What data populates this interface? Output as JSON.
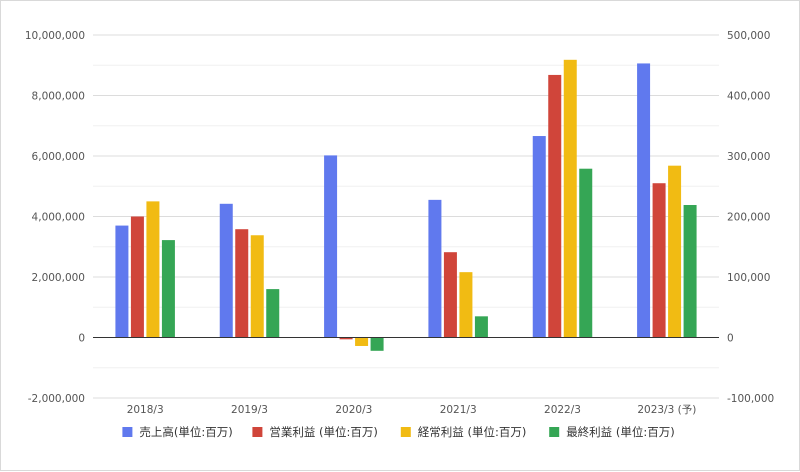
{
  "chart_data": {
    "type": "bar",
    "categories": [
      "2018/3",
      "2019/3",
      "2020/3",
      "2021/3",
      "2022/3",
      "2023/3 (予)"
    ],
    "series": [
      {
        "name": "売上高(単位:百万)",
        "axis": "left",
        "color": "#6079ee",
        "values": [
          3700000,
          4420000,
          6020000,
          4550000,
          6660000,
          9060000
        ]
      },
      {
        "name": "営業利益 (単位:百万)",
        "axis": "right",
        "color": "#d0453a",
        "values": [
          200000,
          179000,
          -3000,
          141000,
          434000,
          255000
        ]
      },
      {
        "name": "経常利益 (単位:百万)",
        "axis": "right",
        "color": "#f1bb13",
        "values": [
          225000,
          169000,
          -14000,
          108000,
          459000,
          284000
        ]
      },
      {
        "name": "最終利益 (単位:百万)",
        "axis": "right",
        "color": "#35a655",
        "values": [
          161000,
          80000,
          -22000,
          35000,
          279000,
          219000
        ]
      }
    ],
    "y_left": {
      "ylim": [
        -2000000,
        10000000
      ],
      "ticks": [
        "-2,000,000",
        "0",
        "2,000,000",
        "4,000,000",
        "6,000,000",
        "8,000,000",
        "10,000,000"
      ]
    },
    "y_right": {
      "ylim": [
        -100000,
        500000
      ],
      "ticks": [
        "-100,000",
        "0",
        "100,000",
        "200,000",
        "300,000",
        "400,000",
        "500,000"
      ]
    },
    "grid": true,
    "legend": "bottom"
  }
}
